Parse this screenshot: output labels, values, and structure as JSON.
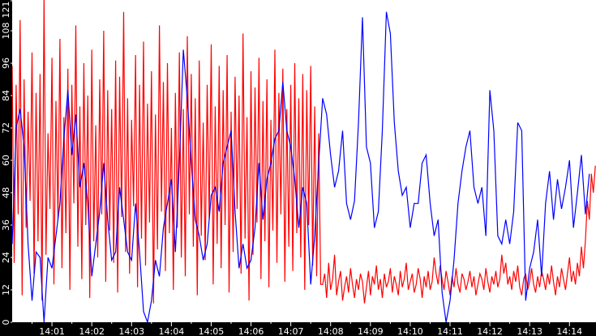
{
  "chart_data": {
    "type": "line",
    "title": "",
    "xlabel": "",
    "ylabel": "",
    "x_range": [
      "14:00:00",
      "14:14:40"
    ],
    "ylim": [
      0,
      121
    ],
    "y_ticks": [
      "0",
      "12",
      "24",
      "36",
      "48",
      "60",
      "72",
      "84",
      "96",
      "108",
      "121"
    ],
    "x_ticks": [
      "14:01",
      "14:02",
      "14:03",
      "14:04",
      "14:05",
      "14:06",
      "14:07",
      "14:08",
      "14:09",
      "14:10",
      "14:11",
      "14:12",
      "14:13",
      "14:14"
    ],
    "grid": false,
    "background": "#ffffff",
    "axis_color": "#000000",
    "series": [
      {
        "color": "#0000ff",
        "start": "14:00:00",
        "interval_s": 6,
        "values": [
          29,
          72,
          79,
          65,
          29,
          8,
          26,
          24,
          0,
          24,
          20,
          32,
          44,
          68,
          86,
          62,
          77,
          50,
          59,
          44,
          17,
          29,
          41,
          59,
          38,
          23,
          26,
          50,
          38,
          26,
          23,
          44,
          26,
          4,
          0,
          8,
          23,
          17,
          35,
          44,
          53,
          26,
          59,
          101,
          83,
          59,
          38,
          32,
          23,
          29,
          47,
          50,
          41,
          59,
          65,
          71,
          41,
          20,
          29,
          20,
          23,
          35,
          59,
          38,
          53,
          59,
          68,
          71,
          89,
          71,
          65,
          53,
          35,
          50,
          44,
          14,
          32,
          59,
          83,
          77,
          62,
          50,
          56,
          71,
          44,
          38,
          45,
          74,
          113,
          65,
          59,
          35,
          41,
          71,
          115,
          107,
          74,
          56,
          47,
          50,
          35,
          44,
          44,
          59,
          62,
          44,
          32,
          38,
          11,
          0,
          8,
          23,
          44,
          56,
          65,
          71,
          50,
          44,
          50,
          32,
          86,
          71,
          32,
          29,
          38,
          29,
          41,
          74,
          71,
          8,
          20,
          26,
          38,
          17,
          44,
          56,
          38,
          53,
          42,
          50,
          60,
          35,
          48,
          62,
          40,
          55
        ]
      },
      {
        "color": "#ff0000",
        "start": "14:00:00",
        "interval_s": 3,
        "values": [
          95,
          22,
          88,
          40,
          112,
          10,
          90,
          35,
          78,
          45,
          100,
          18,
          85,
          30,
          92,
          8,
          121,
          25,
          70,
          42,
          98,
          14,
          82,
          38,
          105,
          20,
          76,
          33,
          94,
          12,
          88,
          44,
          110,
          28,
          80,
          16,
          96,
          36,
          84,
          9,
          101,
          30,
          73,
          24,
          90,
          40,
          108,
          15,
          86,
          34,
          79,
          22,
          97,
          11,
          91,
          39,
          115,
          26,
          83,
          18,
          75,
          43,
          99,
          13,
          88,
          31,
          104,
          21,
          81,
          37,
          93,
          7,
          77,
          27,
          110,
          41,
          89,
          19,
          96,
          33,
          72,
          12,
          85,
          35,
          100,
          24,
          79,
          17,
          106,
          40,
          92,
          28,
          83,
          10,
          97,
          32,
          74,
          23,
          88,
          38,
          103,
          14,
          80,
          29,
          95,
          20,
          86,
          36,
          99,
          11,
          78,
          26,
          91,
          42,
          84,
          18,
          107,
          31,
          76,
          8,
          93,
          25,
          87,
          37,
          98,
          16,
          82,
          30,
          90,
          13,
          75,
          34,
          101,
          22,
          85,
          40,
          94,
          15,
          79,
          28,
          88,
          19,
          96,
          33,
          83,
          24,
          92,
          12,
          86,
          36,
          95,
          21,
          80,
          17,
          70,
          14,
          14,
          18,
          9,
          22,
          12,
          16,
          25,
          10,
          15,
          19,
          8,
          13,
          17,
          11,
          20,
          14,
          9,
          16,
          12,
          18,
          15,
          7,
          13,
          19,
          10,
          17,
          14,
          21,
          12,
          16,
          9,
          18,
          13,
          15,
          20,
          11,
          17,
          14,
          10,
          19,
          13,
          16,
          22,
          12,
          15,
          18,
          11,
          14,
          20,
          16,
          9,
          17,
          13,
          19,
          12,
          15,
          24,
          18,
          14,
          21,
          16,
          12,
          19,
          15,
          10,
          17,
          13,
          20,
          14,
          11,
          18,
          16,
          12,
          15,
          19,
          13,
          17,
          10,
          14,
          18,
          16,
          12,
          20,
          15,
          11,
          17,
          14,
          19,
          13,
          16,
          25,
          18,
          22,
          14,
          17,
          12,
          19,
          15,
          21,
          13,
          10,
          16,
          18,
          12,
          15,
          20,
          14,
          11,
          17,
          13,
          19,
          16,
          12,
          18,
          14,
          21,
          15,
          10,
          17,
          13,
          20,
          16,
          12,
          18,
          24,
          15,
          19,
          14,
          22,
          17,
          28,
          20,
          30,
          45,
          38,
          55,
          48,
          58
        ]
      }
    ]
  }
}
